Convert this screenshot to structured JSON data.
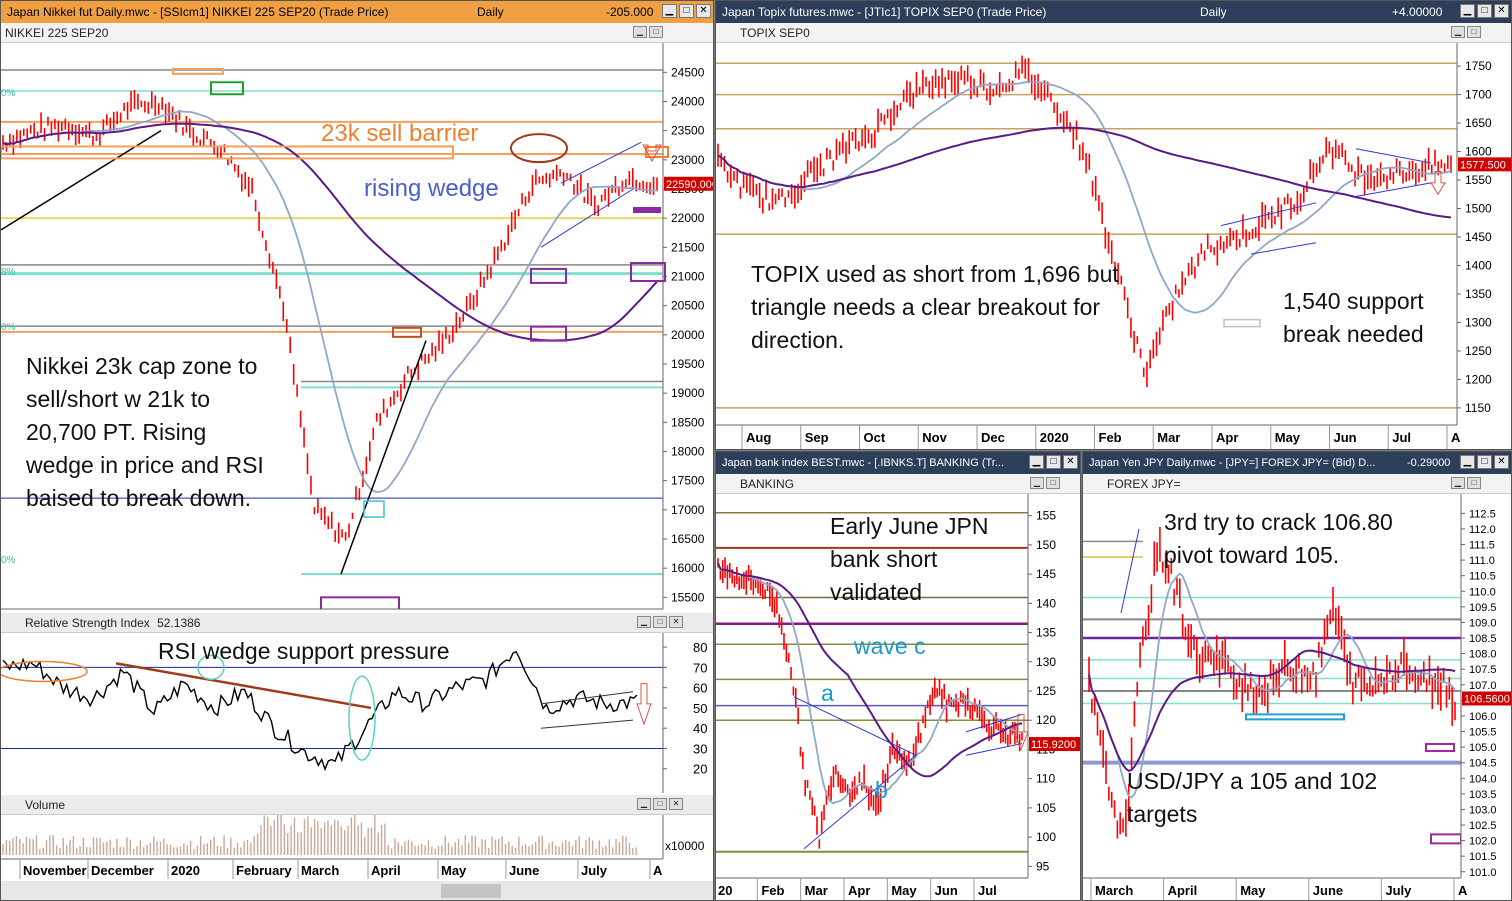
{
  "colors": {
    "price": "#ff0000",
    "ma_short": "#8fa8c8",
    "ma_long": "#5a1a8a",
    "support": "#7fe0d0",
    "gold": "#c8a060",
    "orange": "#f0a060"
  },
  "panels": {
    "nikkei": {
      "title": "Japan Nikkei fut Daily.mwc - [SSIcm1] NIKKEI 225 SEP20 (Trade Price)",
      "period": "Daily",
      "change": "-205.000",
      "label": "NIKKEI 225 SEP20",
      "last_price": "22590.000",
      "y_ticks": [
        "24500",
        "24000",
        "23500",
        "23000",
        "22500",
        "22000",
        "21500",
        "21000",
        "20500",
        "20000",
        "19500",
        "19000",
        "18500",
        "18000",
        "17500",
        "17000",
        "16500",
        "16000",
        "15500"
      ],
      "x_labels": [
        "November",
        "December",
        "2020",
        "February",
        "March",
        "April",
        "May",
        "June",
        "July",
        "A"
      ],
      "left_pcts": [
        "0%",
        "8%",
        "0%",
        "0%"
      ],
      "notes": [
        "23k sell barrier",
        "rising wedge",
        "Nikkei 23k cap zone to\nsell/short w 21k to\n20,700 PT. Rising\nwedge in price and RSI\nbaised to break down."
      ],
      "rsi": {
        "label": "Relative Strength Index",
        "value": "52.1386",
        "note": "RSI wedge support pressure",
        "y_ticks": [
          "80",
          "70",
          "60",
          "50",
          "40",
          "30",
          "20"
        ]
      },
      "volume": {
        "label": "Volume",
        "tick": "x10000"
      }
    },
    "topix": {
      "title": "Japan Topix futures.mwc - [JTIc1] TOPIX SEP0 (Trade Price)",
      "period": "Daily",
      "change": "+4.00000",
      "label": "TOPIX SEP0",
      "last_price": "1577.500",
      "y_ticks": [
        "1750",
        "1700",
        "1650",
        "1600",
        "1550",
        "1500",
        "1450",
        "1400",
        "1350",
        "1300",
        "1250",
        "1200",
        "1150"
      ],
      "x_labels": [
        "Aug",
        "Sep",
        "Oct",
        "Nov",
        "Dec",
        "2020",
        "Feb",
        "Mar",
        "Apr",
        "May",
        "Jun",
        "Jul",
        "A"
      ],
      "notes": [
        "TOPIX used as short from 1,696 but\ntriangle needs a clear breakout for\ndirection.",
        "1,540 support\nbreak needed"
      ]
    },
    "banking": {
      "title": "Japan bank index BEST.mwc - [.IBNKS.T] BANKING (Tr...",
      "label": "BANKING",
      "last_price": "115.9200",
      "y_ticks": [
        "155",
        "150",
        "145",
        "140",
        "135",
        "130",
        "125",
        "120",
        "115",
        "110",
        "105",
        "100",
        "95"
      ],
      "x_labels": [
        "20",
        "Feb",
        "Mar",
        "Apr",
        "May",
        "Jun",
        "Jul"
      ],
      "notes": [
        "Early June JPN\nbank short\nvalidated",
        "wave c",
        "a",
        "b"
      ]
    },
    "jpy": {
      "title": "Japan Yen JPY Daily.mwc - [JPY=] FOREX JPY= (Bid)  D...",
      "change": "-0.29000",
      "label": "FOREX JPY=",
      "last_price": "106.5600",
      "y_ticks": [
        "112.5",
        "112.0",
        "111.5",
        "111.0",
        "110.5",
        "110.0",
        "109.5",
        "109.0",
        "108.5",
        "108.0",
        "107.5",
        "107.0",
        "106.5",
        "106.0",
        "105.5",
        "105.0",
        "104.5",
        "104.0",
        "103.5",
        "103.0",
        "102.5",
        "102.0",
        "101.5",
        "101.0"
      ],
      "x_labels": [
        "March",
        "April",
        "May",
        "June",
        "July",
        "A"
      ],
      "notes": [
        "3rd try to crack 106.80\npivot toward 105.",
        "USD/JPY a 105 and 102\ntargets"
      ]
    }
  },
  "chart_data": [
    {
      "type": "line",
      "title": "NIKKEI 225 SEP20",
      "x": [
        "November",
        "December",
        "2020",
        "February",
        "March",
        "April",
        "May",
        "June",
        "July"
      ],
      "series": [
        {
          "values": [
            23300,
            23600,
            23800,
            23400,
            17000,
            19500,
            21800,
            22500,
            22590
          ]
        }
      ],
      "ylim": [
        15300,
        24900
      ]
    },
    {
      "type": "line",
      "title": "TOPIX SEP0",
      "x": [
        "Aug",
        "Sep",
        "Oct",
        "Nov",
        "Dec",
        "2020",
        "Feb",
        "Mar",
        "Apr",
        "May",
        "Jun",
        "Jul"
      ],
      "series": [
        {
          "values": [
            1530,
            1560,
            1620,
            1680,
            1720,
            1730,
            1690,
            1250,
            1400,
            1480,
            1620,
            1577.5
          ]
        }
      ],
      "ylim": [
        1120,
        1780
      ]
    },
    {
      "type": "line",
      "title": "BANKING",
      "x": [
        "20",
        "Feb",
        "Mar",
        "Apr",
        "May",
        "Jun",
        "Jul"
      ],
      "series": [
        {
          "values": [
            146,
            143,
            100,
            112,
            110,
            124,
            115.92
          ]
        }
      ],
      "ylim": [
        93,
        157
      ]
    },
    {
      "type": "line",
      "title": "FOREX JPY=",
      "x": [
        "March",
        "April",
        "May",
        "June",
        "July"
      ],
      "series": [
        {
          "values": [
            108,
            107.5,
            106.8,
            107.8,
            106.56
          ]
        }
      ],
      "ylim": [
        100.8,
        112.8
      ]
    },
    {
      "type": "line",
      "title": "Relative Strength Index",
      "x": [
        "November",
        "December",
        "2020",
        "February",
        "March",
        "April",
        "May",
        "June",
        "July"
      ],
      "series": [
        {
          "values": [
            70,
            65,
            60,
            58,
            22,
            48,
            65,
            78,
            52.14
          ]
        }
      ],
      "ylim": [
        10,
        85
      ]
    }
  ]
}
